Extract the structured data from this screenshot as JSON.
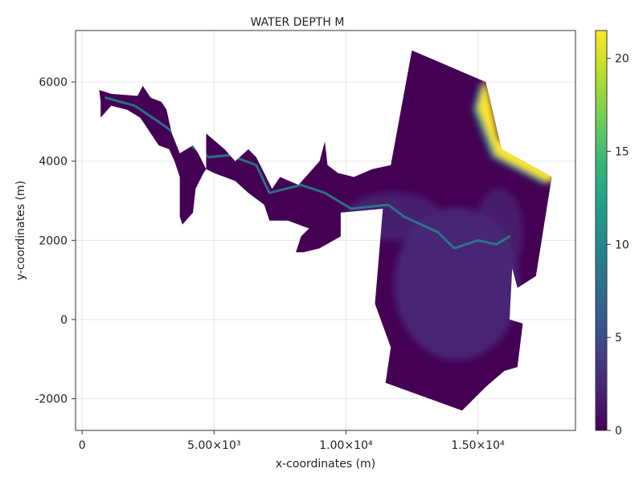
{
  "chart_data": {
    "type": "heatmap",
    "title": "WATER DEPTH     M",
    "xlabel": "x-coordinates (m)",
    "ylabel": "y-coordinates (m)",
    "xlim": [
      -250,
      18700
    ],
    "ylim": [
      -2800,
      7300
    ],
    "x_ticks": [
      {
        "value": 0,
        "label": "0"
      },
      {
        "value": 5000,
        "label": "5.00×10³"
      },
      {
        "value": 10000,
        "label": "1.00×10⁴"
      },
      {
        "value": 15000,
        "label": "1.50×10⁴"
      }
    ],
    "y_ticks": [
      {
        "value": -2000,
        "label": "-2000"
      },
      {
        "value": 0,
        "label": "0"
      },
      {
        "value": 2000,
        "label": "2000"
      },
      {
        "value": 4000,
        "label": "4000"
      },
      {
        "value": 6000,
        "label": "6000"
      }
    ],
    "grid": true,
    "colormap": "viridis",
    "colorbar": {
      "range": [
        0,
        21.5
      ],
      "ticks": [
        {
          "value": 0,
          "label": "0"
        },
        {
          "value": 5,
          "label": "5"
        },
        {
          "value": 10,
          "label": "10"
        },
        {
          "value": 15,
          "label": "15"
        },
        {
          "value": 20,
          "label": "20"
        }
      ],
      "colors": [
        "#440154",
        "#482878",
        "#3e4989",
        "#31688e",
        "#26828e",
        "#1f9e89",
        "#35b779",
        "#6ece58",
        "#b5de2b",
        "#fde725"
      ]
    },
    "domain_polygon": [
      [
        650,
        5800
      ],
      [
        1100,
        5700
      ],
      [
        2100,
        5650
      ],
      [
        2300,
        5900
      ],
      [
        2600,
        5600
      ],
      [
        3000,
        5500
      ],
      [
        3200,
        5300
      ],
      [
        3400,
        4700
      ],
      [
        3700,
        4200
      ],
      [
        4200,
        4400
      ],
      [
        4400,
        4200
      ],
      [
        4700,
        3800
      ],
      [
        4700,
        4700
      ],
      [
        5400,
        4300
      ],
      [
        5800,
        4000
      ],
      [
        6300,
        4300
      ],
      [
        6600,
        4100
      ],
      [
        6900,
        3700
      ],
      [
        7200,
        3300
      ],
      [
        7500,
        3600
      ],
      [
        8200,
        3400
      ],
      [
        9000,
        4000
      ],
      [
        9200,
        4500
      ],
      [
        9300,
        3900
      ],
      [
        9700,
        3700
      ],
      [
        10300,
        3600
      ],
      [
        11000,
        3800
      ],
      [
        11700,
        3900
      ],
      [
        12500,
        6800
      ],
      [
        15300,
        6000
      ],
      [
        15900,
        4300
      ],
      [
        17800,
        3600
      ],
      [
        17200,
        1100
      ],
      [
        16500,
        800
      ],
      [
        16300,
        1300
      ],
      [
        16200,
        0
      ],
      [
        16700,
        -100
      ],
      [
        16500,
        -1200
      ],
      [
        16000,
        -1300
      ],
      [
        15300,
        -1700
      ],
      [
        14400,
        -2300
      ],
      [
        11500,
        -1600
      ],
      [
        11700,
        -700
      ],
      [
        11100,
        400
      ],
      [
        11400,
        2800
      ],
      [
        9800,
        2700
      ],
      [
        9800,
        2100
      ],
      [
        9000,
        1800
      ],
      [
        8400,
        1700
      ],
      [
        8100,
        1700
      ],
      [
        8300,
        2100
      ],
      [
        8600,
        2300
      ],
      [
        7800,
        2500
      ],
      [
        7100,
        2500
      ],
      [
        6900,
        2900
      ],
      [
        6300,
        3200
      ],
      [
        5800,
        3500
      ],
      [
        5000,
        3700
      ],
      [
        4700,
        3800
      ],
      [
        4600,
        3700
      ],
      [
        4300,
        3300
      ],
      [
        4200,
        2700
      ],
      [
        3800,
        2400
      ],
      [
        3700,
        2600
      ],
      [
        3700,
        3600
      ],
      [
        3500,
        4000
      ],
      [
        3300,
        4300
      ],
      [
        2900,
        4400
      ],
      [
        2500,
        4800
      ],
      [
        2200,
        5100
      ],
      [
        1700,
        5300
      ],
      [
        1100,
        5400
      ],
      [
        700,
        5100
      ],
      [
        700,
        5500
      ]
    ],
    "deep_zone_polygon": [
      [
        15100,
        6050
      ],
      [
        15600,
        4500
      ],
      [
        17800,
        3650
      ],
      [
        17550,
        3400
      ],
      [
        15500,
        4100
      ],
      [
        14800,
        5300
      ]
    ],
    "channel_path": [
      [
        900,
        5600
      ],
      [
        2000,
        5400
      ],
      [
        3100,
        4900
      ],
      [
        4100,
        4400
      ],
      [
        4800,
        4100
      ],
      [
        5600,
        4150
      ],
      [
        6600,
        3900
      ],
      [
        7100,
        3200
      ],
      [
        8300,
        3400
      ],
      [
        9200,
        3200
      ],
      [
        10200,
        2800
      ],
      [
        11600,
        2900
      ],
      [
        12200,
        2600
      ],
      [
        13500,
        2200
      ],
      [
        14100,
        1800
      ],
      [
        15000,
        2000
      ],
      [
        15700,
        1900
      ],
      [
        16200,
        2100
      ]
    ]
  }
}
